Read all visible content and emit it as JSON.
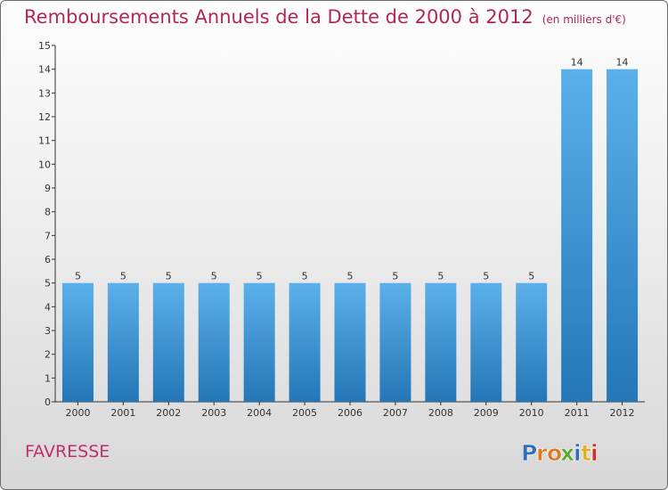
{
  "chart_data": {
    "type": "bar",
    "title": "Remboursements Annuels de la Dette de 2000 à 2012",
    "unit": "(en milliers d'€)",
    "categories": [
      "2000",
      "2001",
      "2002",
      "2003",
      "2004",
      "2005",
      "2006",
      "2007",
      "2008",
      "2009",
      "2010",
      "2011",
      "2012"
    ],
    "values": [
      5,
      5,
      5,
      5,
      5,
      5,
      5,
      5,
      5,
      5,
      5,
      14,
      14
    ],
    "ylim": [
      0,
      15
    ],
    "yticks": [
      0,
      1,
      2,
      3,
      4,
      5,
      6,
      7,
      8,
      9,
      10,
      11,
      12,
      13,
      14,
      15
    ],
    "grid": false,
    "bar_color": "#3f8fd0"
  },
  "commune": "FAVRESSE",
  "logo": {
    "icon": "proxiti-logo",
    "text": "Proxiti",
    "letters": [
      {
        "ch": "P",
        "color": "#2f6fb8"
      },
      {
        "ch": "r",
        "color": "#e07820"
      },
      {
        "ch": "o",
        "color": "#e07820"
      },
      {
        "ch": "x",
        "color": "#5aa832"
      },
      {
        "ch": "i",
        "color": "#2f6fb8"
      },
      {
        "ch": "t",
        "color": "#e0b020"
      },
      {
        "ch": "i",
        "color": "#d03030"
      }
    ]
  }
}
